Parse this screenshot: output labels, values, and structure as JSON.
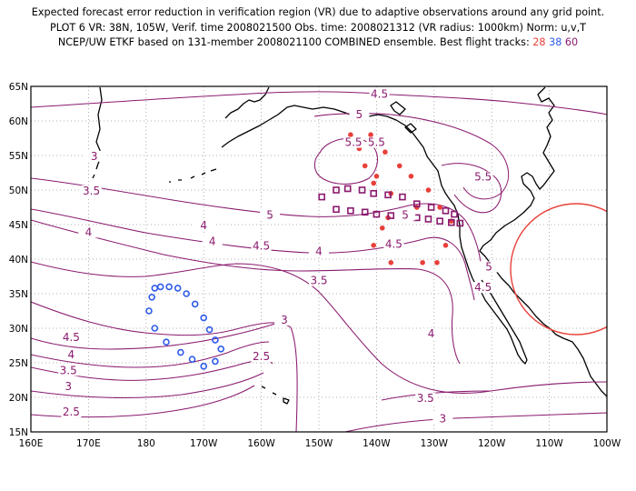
{
  "header": {
    "line1": "Expected forecast error reduction in verification region (VR) due to adaptive observations around any grid point.",
    "line2": "PLOT 6 VR: 38N, 105W, Verif. time 2008021500 Obs. time: 2008021312 (VR radius: 1000km) Norm: u,v,T",
    "line3_prefix": "NCEP/UW ETKF based on 131-member 2008021100 COMBINED ensemble.  Best flight tracks:",
    "track_28": "28",
    "track_38": "38",
    "track_60": "60"
  },
  "map": {
    "lon_labels": [
      "160E",
      "170E",
      "180",
      "170W",
      "160W",
      "150W",
      "140W",
      "130W",
      "120W",
      "110W",
      "100W"
    ],
    "lat_labels": [
      "15N",
      "20N",
      "25N",
      "30N",
      "35N",
      "40N",
      "45N",
      "50N",
      "55N",
      "60N",
      "65N"
    ],
    "contour_labels": [
      {
        "text": "4.5",
        "lon": -139.5,
        "lat": 63.5
      },
      {
        "text": "5",
        "lon": -143,
        "lat": 60.5
      },
      {
        "text": "5.5",
        "lon": -144,
        "lat": 56.5
      },
      {
        "text": "5.5",
        "lon": -140,
        "lat": 56.5
      },
      {
        "text": "5.5",
        "lon": -121.5,
        "lat": 51.5
      },
      {
        "text": "5",
        "lon": -135,
        "lat": 46
      },
      {
        "text": "5",
        "lon": -158.5,
        "lat": 46
      },
      {
        "text": "4.5",
        "lon": -160,
        "lat": 41.5
      },
      {
        "text": "4.5",
        "lon": -137,
        "lat": 41.8
      },
      {
        "text": "4",
        "lon": -150,
        "lat": 40.7
      },
      {
        "text": "4",
        "lon": -168.5,
        "lat": 42.2
      },
      {
        "text": "4",
        "lon": -170,
        "lat": 44.5
      },
      {
        "text": "3.5",
        "lon": -150,
        "lat": 36.5
      },
      {
        "text": "3",
        "lon": -156,
        "lat": 30.8
      },
      {
        "text": "4",
        "lon": -130.5,
        "lat": 28.8
      },
      {
        "text": "3",
        "lon": 171,
        "lat": 54.5
      },
      {
        "text": "3.5",
        "lon": 170.5,
        "lat": 49.5
      },
      {
        "text": "4",
        "lon": 170,
        "lat": 43.5
      },
      {
        "text": "4.5",
        "lon": 167,
        "lat": 28.3
      },
      {
        "text": "4",
        "lon": 167,
        "lat": 25.8
      },
      {
        "text": "3.5",
        "lon": 166.5,
        "lat": 23.5
      },
      {
        "text": "3",
        "lon": 166.5,
        "lat": 21.2
      },
      {
        "text": "2.5",
        "lon": 167,
        "lat": 17.5
      },
      {
        "text": "2.5",
        "lon": -160,
        "lat": 25.5
      },
      {
        "text": "3.5",
        "lon": -131.5,
        "lat": 19.5
      },
      {
        "text": "3",
        "lon": -128.5,
        "lat": 16.5
      },
      {
        "text": "5",
        "lon": -120.5,
        "lat": 38.5
      },
      {
        "text": "4.5",
        "lon": -121.5,
        "lat": 35.5
      }
    ],
    "colors": {
      "contour": "#8a1a6e",
      "track28": "#e8403a",
      "track38": "#2f5bea",
      "track60": "#8a1a6e",
      "vr_circle": "#e8403a",
      "grid": "#999999"
    }
  }
}
